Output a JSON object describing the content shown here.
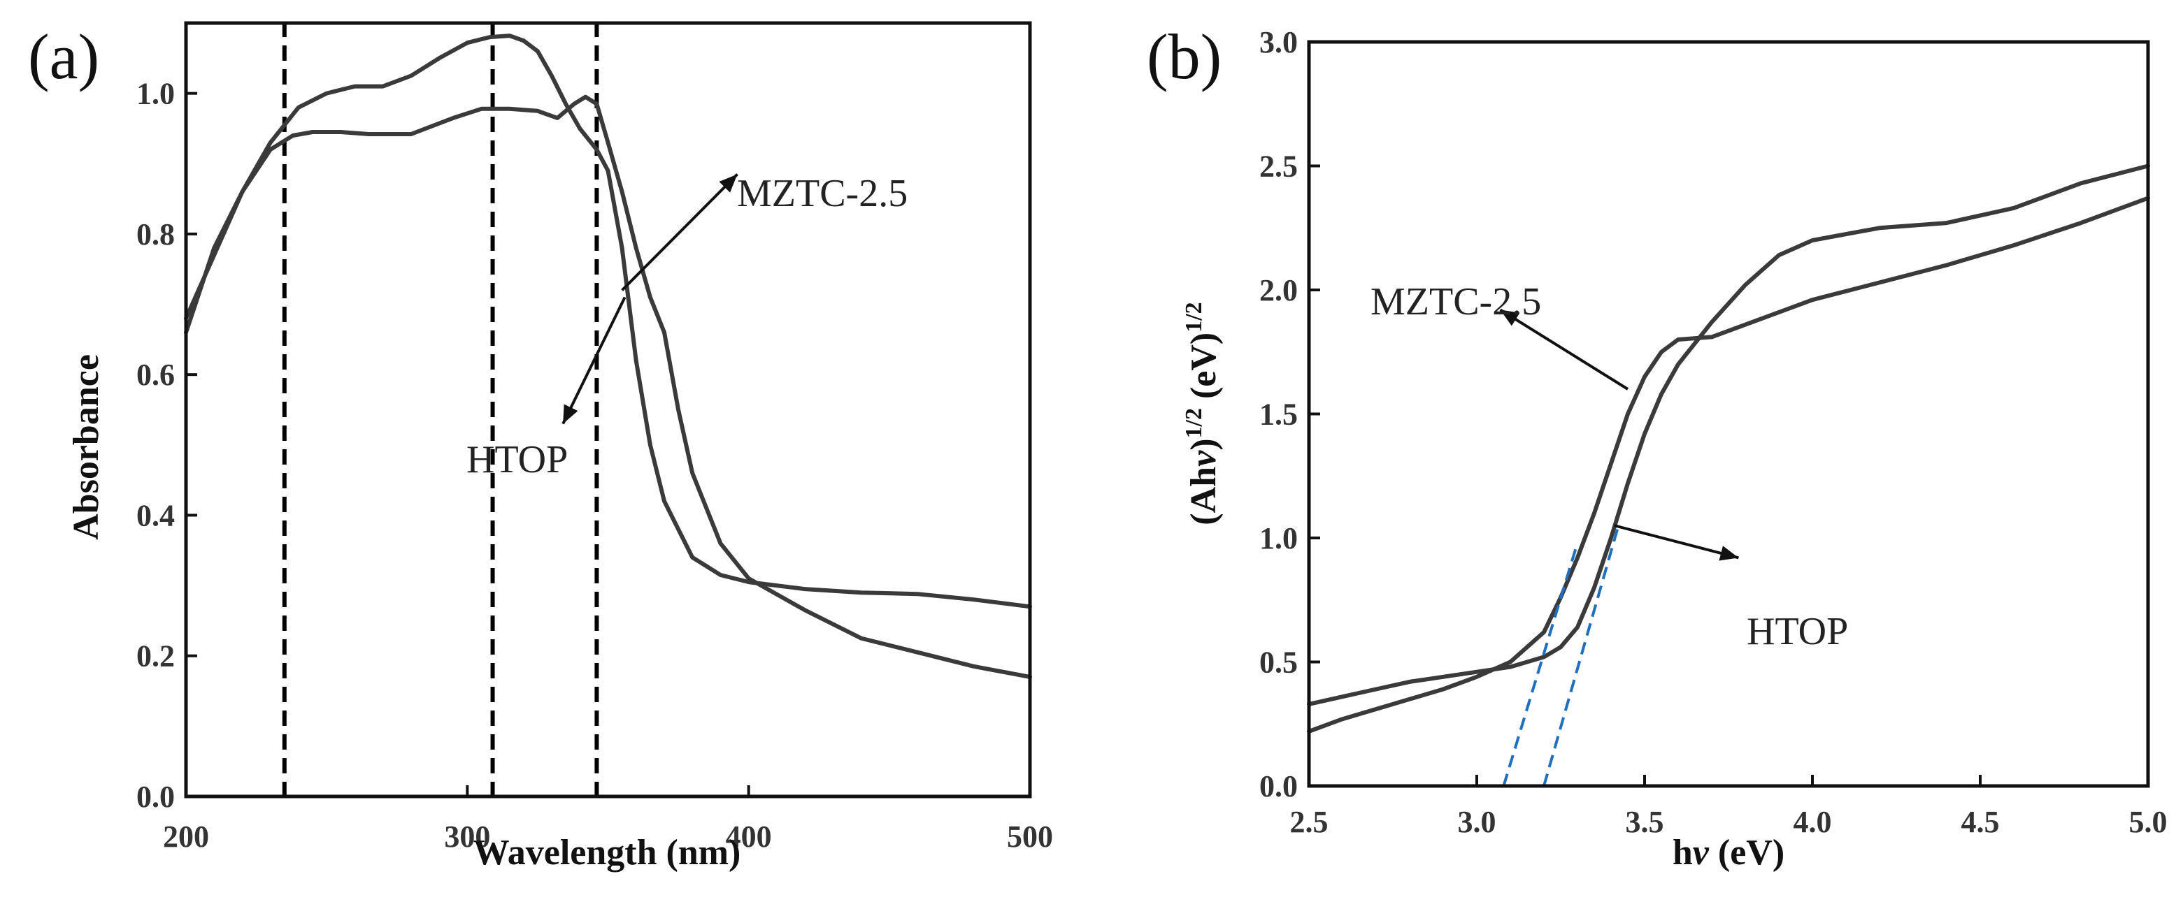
{
  "chart_data": [
    {
      "panel": "(a)",
      "type": "line",
      "xlabel": "Wavelength (nm)",
      "ylabel": "Absorbance",
      "xlim": [
        200,
        500
      ],
      "ylim": [
        0.0,
        1.1
      ],
      "xticks": [
        200,
        300,
        400,
        500
      ],
      "yticks": [
        0.0,
        0.2,
        0.4,
        0.6,
        0.8,
        1.0
      ],
      "xtick_labels": [
        "200",
        "300",
        "400",
        "500"
      ],
      "ytick_labels": [
        "0.0",
        "0.2",
        "0.4",
        "0.6",
        "0.8",
        "1.0"
      ],
      "vlines": [
        235,
        309,
        346
      ],
      "series": [
        {
          "name": "MZTC-2.5",
          "x": [
            200,
            210,
            220,
            230,
            238,
            245,
            255,
            265,
            280,
            295,
            305,
            315,
            325,
            332,
            338,
            342,
            346,
            350,
            355,
            360,
            365,
            370,
            375,
            380,
            390,
            400,
            420,
            440,
            460,
            480,
            500
          ],
          "y": [
            0.68,
            0.77,
            0.86,
            0.92,
            0.94,
            0.945,
            0.945,
            0.942,
            0.942,
            0.965,
            0.978,
            0.978,
            0.975,
            0.965,
            0.985,
            0.995,
            0.985,
            0.93,
            0.86,
            0.78,
            0.71,
            0.66,
            0.55,
            0.46,
            0.36,
            0.31,
            0.265,
            0.225,
            0.205,
            0.185,
            0.17
          ]
        },
        {
          "name": "HTOP",
          "x": [
            200,
            205,
            210,
            220,
            230,
            240,
            250,
            260,
            270,
            280,
            290,
            300,
            308,
            315,
            320,
            325,
            330,
            335,
            340,
            346,
            350,
            355,
            360,
            365,
            370,
            380,
            390,
            400,
            420,
            440,
            460,
            480,
            500
          ],
          "y": [
            0.66,
            0.72,
            0.78,
            0.86,
            0.93,
            0.98,
            1.0,
            1.01,
            1.01,
            1.025,
            1.05,
            1.072,
            1.08,
            1.082,
            1.075,
            1.06,
            1.025,
            0.985,
            0.95,
            0.92,
            0.89,
            0.78,
            0.62,
            0.5,
            0.42,
            0.34,
            0.315,
            0.305,
            0.295,
            0.29,
            0.288,
            0.28,
            0.27
          ]
        }
      ],
      "annotations": [
        {
          "text": "MZTC-2.5",
          "arrow_from": [
            355,
            0.72
          ],
          "arrow_to": [
            396,
            0.885
          ]
        },
        {
          "text": "HTOP",
          "arrow_from": [
            356,
            0.71
          ],
          "arrow_to": [
            334,
            0.53
          ]
        }
      ]
    },
    {
      "panel": "(b)",
      "type": "line",
      "xlabel": "hν (eV)",
      "ylabel": "(Ahν)^1/2 (eV)^1/2",
      "xlim": [
        2.5,
        5.0
      ],
      "ylim": [
        0.0,
        3.0
      ],
      "xticks": [
        2.5,
        3.0,
        3.5,
        4.0,
        4.5,
        5.0
      ],
      "yticks": [
        0.0,
        0.5,
        1.0,
        1.5,
        2.0,
        2.5,
        3.0
      ],
      "xtick_labels": [
        "2.5",
        "3.0",
        "3.5",
        "4.0",
        "4.5",
        "5.0"
      ],
      "ytick_labels": [
        "0.0",
        "0.5",
        "1.0",
        "1.5",
        "2.0",
        "2.5",
        "3.0"
      ],
      "series": [
        {
          "name": "MZTC-2.5",
          "x": [
            2.5,
            2.6,
            2.7,
            2.8,
            2.9,
            3.0,
            3.1,
            3.2,
            3.25,
            3.3,
            3.35,
            3.4,
            3.45,
            3.5,
            3.55,
            3.6,
            3.7,
            3.8,
            4.0,
            4.2,
            4.4,
            4.6,
            4.8,
            5.0
          ],
          "y": [
            0.22,
            0.27,
            0.31,
            0.35,
            0.39,
            0.44,
            0.5,
            0.62,
            0.76,
            0.92,
            1.1,
            1.3,
            1.5,
            1.65,
            1.75,
            1.8,
            1.81,
            1.86,
            1.96,
            2.03,
            2.1,
            2.18,
            2.27,
            2.37
          ]
        },
        {
          "name": "HTOP",
          "x": [
            2.5,
            2.6,
            2.7,
            2.8,
            2.9,
            3.0,
            3.1,
            3.2,
            3.25,
            3.3,
            3.35,
            3.4,
            3.45,
            3.5,
            3.55,
            3.6,
            3.7,
            3.8,
            3.9,
            4.0,
            4.2,
            4.4,
            4.6,
            4.8,
            5.0
          ],
          "y": [
            0.33,
            0.36,
            0.39,
            0.42,
            0.44,
            0.46,
            0.48,
            0.52,
            0.56,
            0.64,
            0.8,
            1.0,
            1.22,
            1.42,
            1.58,
            1.7,
            1.87,
            2.02,
            2.14,
            2.2,
            2.25,
            2.27,
            2.33,
            2.43,
            2.5
          ]
        }
      ],
      "fit_lines": [
        {
          "series": "MZTC-2.5",
          "from": [
            3.08,
            0.0
          ],
          "to": [
            3.3,
            0.98
          ]
        },
        {
          "series": "HTOP",
          "from": [
            3.2,
            0.0
          ],
          "to": [
            3.42,
            1.04
          ]
        }
      ],
      "annotations": [
        {
          "text": "MZTC-2.5",
          "arrow_from": [
            3.45,
            1.6
          ],
          "arrow_to": [
            3.07,
            1.92
          ]
        },
        {
          "text": "HTOP",
          "arrow_from": [
            3.41,
            1.05
          ],
          "arrow_to": [
            3.78,
            0.92
          ]
        }
      ]
    }
  ]
}
